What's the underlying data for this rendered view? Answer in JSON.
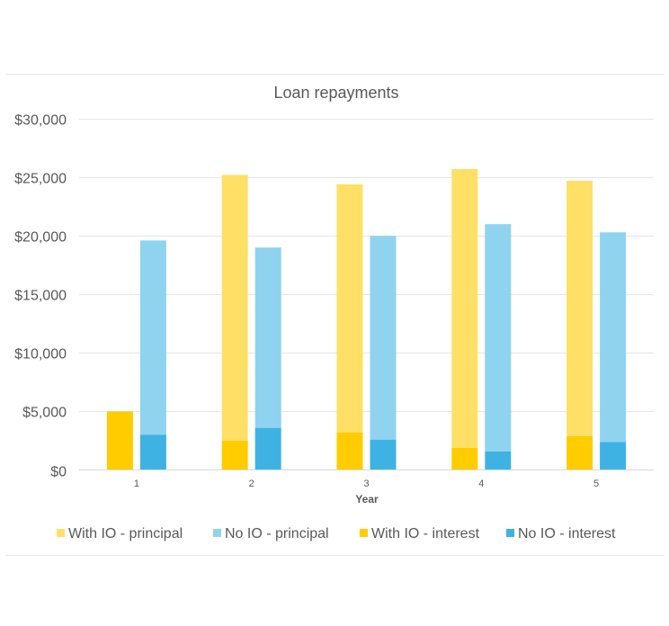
{
  "chart_data": {
    "type": "bar",
    "stacked": "grouped-stacked",
    "title": "Loan repayments",
    "xlabel": "Year",
    "ylabel": "",
    "ylim": [
      0,
      30000
    ],
    "yticks": [
      0,
      5000,
      10000,
      15000,
      20000,
      25000,
      30000
    ],
    "ytick_labels": [
      "$0",
      "$5,000",
      "$10,000",
      "$15,000",
      "$20,000",
      "$25,000",
      "$30,000"
    ],
    "categories": [
      "1",
      "2",
      "3",
      "4",
      "5"
    ],
    "grid": true,
    "legend_position": "bottom",
    "series": [
      {
        "name": "With IO - principal",
        "group": "With IO",
        "values": [
          0,
          22700,
          21200,
          23800,
          21800
        ],
        "color": "#ffe066"
      },
      {
        "name": "No IO - principal",
        "group": "No IO",
        "values": [
          16600,
          15400,
          17400,
          19400,
          17900
        ],
        "color": "#8fd3ef"
      },
      {
        "name": "With IO - interest",
        "group": "With IO",
        "values": [
          5000,
          2500,
          3200,
          1900,
          2900
        ],
        "color": "#ffcc00"
      },
      {
        "name": "No IO - interest",
        "group": "No IO",
        "values": [
          3000,
          3600,
          2600,
          1600,
          2400
        ],
        "color": "#3eb3e3"
      }
    ]
  }
}
